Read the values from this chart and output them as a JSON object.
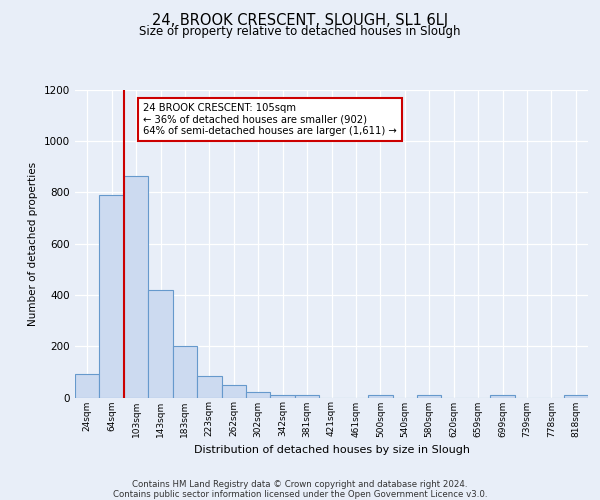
{
  "title": "24, BROOK CRESCENT, SLOUGH, SL1 6LJ",
  "subtitle": "Size of property relative to detached houses in Slough",
  "xlabel": "Distribution of detached houses by size in Slough",
  "ylabel": "Number of detached properties",
  "bar_labels": [
    "24sqm",
    "64sqm",
    "103sqm",
    "143sqm",
    "183sqm",
    "223sqm",
    "262sqm",
    "302sqm",
    "342sqm",
    "381sqm",
    "421sqm",
    "461sqm",
    "500sqm",
    "540sqm",
    "580sqm",
    "620sqm",
    "659sqm",
    "699sqm",
    "739sqm",
    "778sqm",
    "818sqm"
  ],
  "bar_values": [
    90,
    790,
    865,
    420,
    200,
    85,
    50,
    22,
    10,
    10,
    0,
    0,
    8,
    0,
    10,
    0,
    0,
    10,
    0,
    0,
    10
  ],
  "bar_color": "#ccdaf0",
  "bar_edge_color": "#6699cc",
  "highlight_bar_idx": 2,
  "highlight_color": "#cc0000",
  "annotation_title": "24 BROOK CRESCENT: 105sqm",
  "annotation_line1": "← 36% of detached houses are smaller (902)",
  "annotation_line2": "64% of semi-detached houses are larger (1,611) →",
  "annotation_box_color": "#ffffff",
  "annotation_box_edge": "#cc0000",
  "ylim": [
    0,
    1200
  ],
  "yticks": [
    0,
    200,
    400,
    600,
    800,
    1000,
    1200
  ],
  "bg_color": "#e8eef8",
  "plot_bg_color": "#e8eef8",
  "grid_color": "#ffffff",
  "footer1": "Contains HM Land Registry data © Crown copyright and database right 2024.",
  "footer2": "Contains public sector information licensed under the Open Government Licence v3.0."
}
